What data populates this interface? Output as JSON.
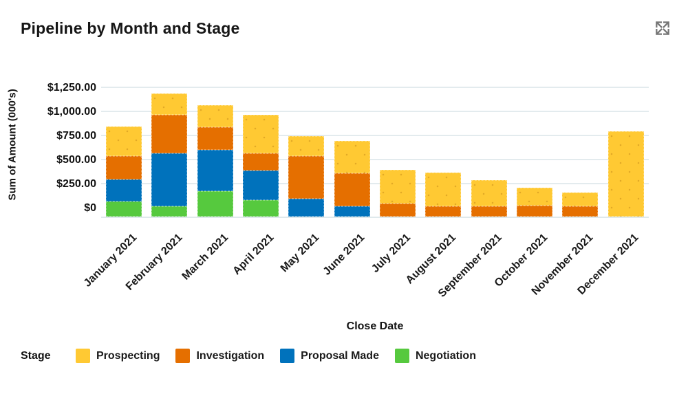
{
  "header": {
    "title": "Pipeline by Month and Stage"
  },
  "chart_data": {
    "type": "bar",
    "stacked": true,
    "title": "Pipeline by Month and Stage",
    "xlabel": "Close Date",
    "ylabel": "Sum of Amount (000's)",
    "units": "USD thousands",
    "ylim": [
      0,
      1335
    ],
    "grid": true,
    "y_ticks": [
      {
        "v": 0,
        "label": "$0"
      },
      {
        "v": 250,
        "label": "$250.00"
      },
      {
        "v": 500,
        "label": "$500.00"
      },
      {
        "v": 750,
        "label": "$750.00"
      },
      {
        "v": 1000,
        "label": "$1,000.00"
      },
      {
        "v": 1250,
        "label": "$1,250.00"
      }
    ],
    "categories": [
      "January 2021",
      "February 2021",
      "March 2021",
      "April 2021",
      "May 2021",
      "June 2021",
      "July 2021",
      "August 2021",
      "September 2021",
      "October 2021",
      "November 2021",
      "December 2021"
    ],
    "series": [
      {
        "name": "Negotiation",
        "key": "negotiation",
        "color": "#56C93E",
        "values": [
          75,
          20,
          180,
          85,
          0,
          0,
          0,
          0,
          0,
          0,
          0,
          0
        ]
      },
      {
        "name": "Proposal Made",
        "key": "proposal-made",
        "color": "#0072BC",
        "values": [
          225,
          555,
          425,
          305,
          100,
          20,
          0,
          0,
          0,
          0,
          0,
          0
        ]
      },
      {
        "name": "Investigation",
        "key": "investigation",
        "color": "#E56F00",
        "values": [
          245,
          395,
          240,
          185,
          440,
          345,
          50,
          25,
          20,
          30,
          25,
          0
        ]
      },
      {
        "name": "Prospecting",
        "key": "prospecting",
        "color": "#FFC933",
        "values": [
          305,
          220,
          230,
          395,
          210,
          335,
          350,
          345,
          270,
          185,
          140,
          800
        ]
      }
    ],
    "totals": [
      850,
      1190,
      1075,
      970,
      750,
      700,
      400,
      370,
      290,
      215,
      165,
      800
    ],
    "legend": {
      "title": "Stage",
      "position": "bottom",
      "items": [
        "Prospecting",
        "Investigation",
        "Proposal Made",
        "Negotiation"
      ]
    },
    "colors": {
      "gridline": "#e3ebee",
      "axis_line": "#dfe9ec",
      "icon": "#757575",
      "text": "#161616"
    }
  }
}
